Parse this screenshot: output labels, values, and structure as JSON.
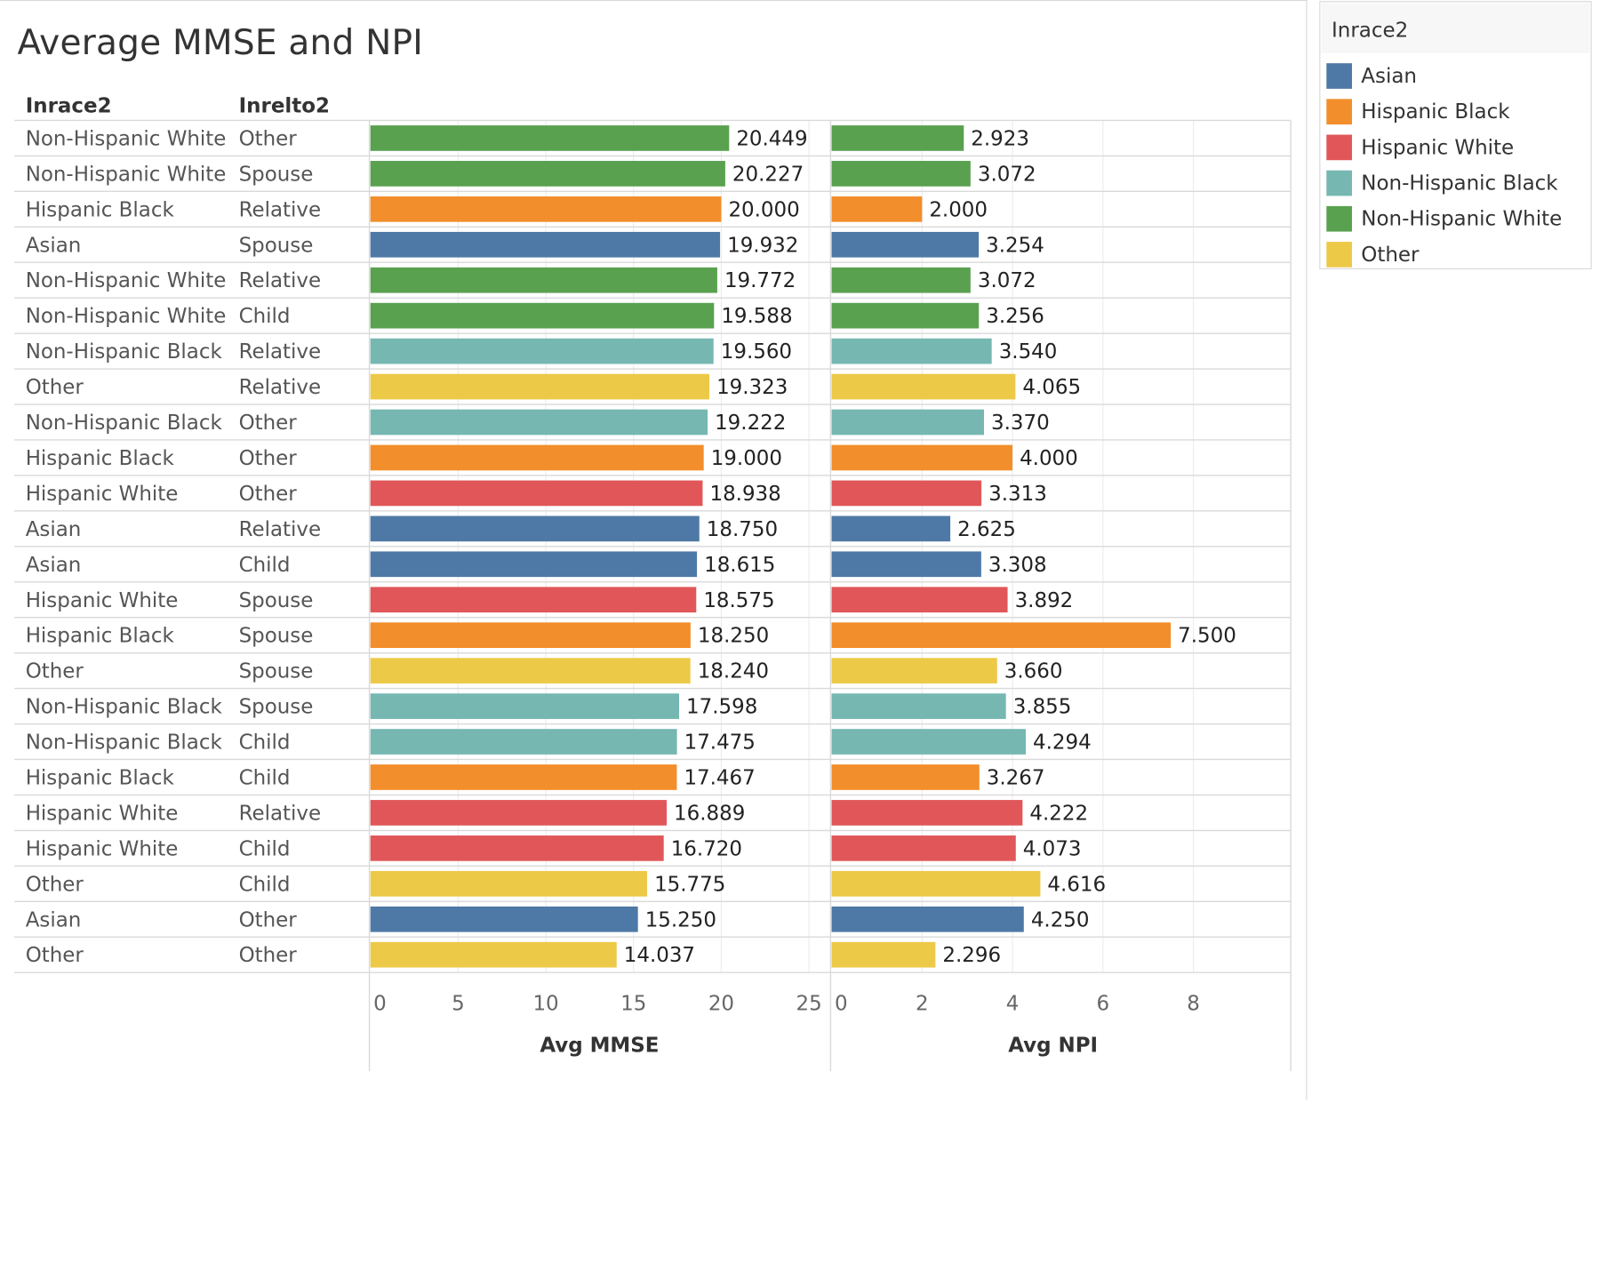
{
  "title": "Average MMSE and NPI",
  "headers": {
    "race": "Inrace2",
    "relation": "Inrelto2"
  },
  "colors": {
    "Asian": "#4e79a7",
    "Hispanic Black": "#f28e2b",
    "Hispanic White": "#e15759",
    "Non-Hispanic Black": "#76b7b2",
    "Non-Hispanic White": "#59a14f",
    "Other": "#edc948"
  },
  "legend": {
    "title": "Inrace2",
    "items": [
      {
        "label": "Asian",
        "color": "#4e79a7"
      },
      {
        "label": "Hispanic Black",
        "color": "#f28e2b"
      },
      {
        "label": "Hispanic White",
        "color": "#e15759"
      },
      {
        "label": "Non-Hispanic Black",
        "color": "#76b7b2"
      },
      {
        "label": "Non-Hispanic White",
        "color": "#59a14f"
      },
      {
        "label": "Other",
        "color": "#edc948"
      }
    ]
  },
  "chart_data": {
    "type": "bar",
    "orientation": "horizontal",
    "title": "Average MMSE and NPI",
    "rows": [
      {
        "race": "Non-Hispanic White",
        "relation": "Other",
        "mmse": 20.449,
        "npi": 2.923,
        "mmse_label": "20.449",
        "npi_label": "2.923"
      },
      {
        "race": "Non-Hispanic White",
        "relation": "Spouse",
        "mmse": 20.227,
        "npi": 3.072,
        "mmse_label": "20.227",
        "npi_label": "3.072"
      },
      {
        "race": "Hispanic Black",
        "relation": "Relative",
        "mmse": 20.0,
        "npi": 2.0,
        "mmse_label": "20.000",
        "npi_label": "2.000"
      },
      {
        "race": "Asian",
        "relation": "Spouse",
        "mmse": 19.932,
        "npi": 3.254,
        "mmse_label": "19.932",
        "npi_label": "3.254"
      },
      {
        "race": "Non-Hispanic White",
        "relation": "Relative",
        "mmse": 19.772,
        "npi": 3.072,
        "mmse_label": "19.772",
        "npi_label": "3.072"
      },
      {
        "race": "Non-Hispanic White",
        "relation": "Child",
        "mmse": 19.588,
        "npi": 3.256,
        "mmse_label": "19.588",
        "npi_label": "3.256"
      },
      {
        "race": "Non-Hispanic Black",
        "relation": "Relative",
        "mmse": 19.56,
        "npi": 3.54,
        "mmse_label": "19.560",
        "npi_label": "3.540"
      },
      {
        "race": "Other",
        "relation": "Relative",
        "mmse": 19.323,
        "npi": 4.065,
        "mmse_label": "19.323",
        "npi_label": "4.065"
      },
      {
        "race": "Non-Hispanic Black",
        "relation": "Other",
        "mmse": 19.222,
        "npi": 3.37,
        "mmse_label": "19.222",
        "npi_label": "3.370"
      },
      {
        "race": "Hispanic Black",
        "relation": "Other",
        "mmse": 19.0,
        "npi": 4.0,
        "mmse_label": "19.000",
        "npi_label": "4.000"
      },
      {
        "race": "Hispanic White",
        "relation": "Other",
        "mmse": 18.938,
        "npi": 3.313,
        "mmse_label": "18.938",
        "npi_label": "3.313"
      },
      {
        "race": "Asian",
        "relation": "Relative",
        "mmse": 18.75,
        "npi": 2.625,
        "mmse_label": "18.750",
        "npi_label": "2.625"
      },
      {
        "race": "Asian",
        "relation": "Child",
        "mmse": 18.615,
        "npi": 3.308,
        "mmse_label": "18.615",
        "npi_label": "3.308"
      },
      {
        "race": "Hispanic White",
        "relation": "Spouse",
        "mmse": 18.575,
        "npi": 3.892,
        "mmse_label": "18.575",
        "npi_label": "3.892"
      },
      {
        "race": "Hispanic Black",
        "relation": "Spouse",
        "mmse": 18.25,
        "npi": 7.5,
        "mmse_label": "18.250",
        "npi_label": "7.500"
      },
      {
        "race": "Other",
        "relation": "Spouse",
        "mmse": 18.24,
        "npi": 3.66,
        "mmse_label": "18.240",
        "npi_label": "3.660"
      },
      {
        "race": "Non-Hispanic Black",
        "relation": "Spouse",
        "mmse": 17.598,
        "npi": 3.855,
        "mmse_label": "17.598",
        "npi_label": "3.855"
      },
      {
        "race": "Non-Hispanic Black",
        "relation": "Child",
        "mmse": 17.475,
        "npi": 4.294,
        "mmse_label": "17.475",
        "npi_label": "4.294"
      },
      {
        "race": "Hispanic Black",
        "relation": "Child",
        "mmse": 17.467,
        "npi": 3.267,
        "mmse_label": "17.467",
        "npi_label": "3.267"
      },
      {
        "race": "Hispanic White",
        "relation": "Relative",
        "mmse": 16.889,
        "npi": 4.222,
        "mmse_label": "16.889",
        "npi_label": "4.222"
      },
      {
        "race": "Hispanic White",
        "relation": "Child",
        "mmse": 16.72,
        "npi": 4.073,
        "mmse_label": "16.720",
        "npi_label": "4.073"
      },
      {
        "race": "Other",
        "relation": "Child",
        "mmse": 15.775,
        "npi": 4.616,
        "mmse_label": "15.775",
        "npi_label": "4.616"
      },
      {
        "race": "Asian",
        "relation": "Other",
        "mmse": 15.25,
        "npi": 4.25,
        "mmse_label": "15.250",
        "npi_label": "4.250"
      },
      {
        "race": "Other",
        "relation": "Other",
        "mmse": 14.037,
        "npi": 2.296,
        "mmse_label": "14.037",
        "npi_label": "2.296"
      }
    ],
    "axes": [
      {
        "measure": "mmse",
        "label": "Avg MMSE",
        "xlim": [
          0,
          25.3
        ],
        "ticks": [
          0,
          5,
          10,
          15,
          20,
          25
        ]
      },
      {
        "measure": "npi",
        "label": "Avg NPI",
        "xlim": [
          0,
          9.25
        ],
        "ticks": [
          0,
          2,
          4,
          6,
          8
        ]
      }
    ],
    "grid": true,
    "legend_position": "right"
  }
}
